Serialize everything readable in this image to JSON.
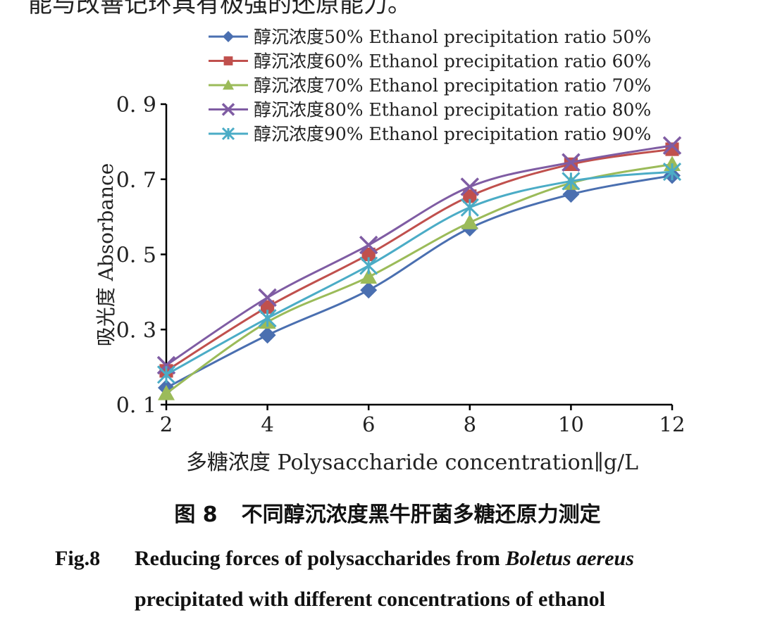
{
  "header_fragment": "能与改善记环具有极强的还原能力。",
  "chart_data": {
    "type": "line",
    "x": [
      2,
      4,
      6,
      8,
      10,
      12
    ],
    "xlabel": "多糖浓度 Polysaccharide concentration∥g/L",
    "ylabel": "吸光度 Absorbance",
    "xlim": [
      2,
      12
    ],
    "ylim": [
      0.1,
      0.9
    ],
    "yticks": [
      "0. 1",
      "0. 3",
      "0. 5",
      "0. 7",
      "0. 9"
    ],
    "xticks": [
      "2",
      "4",
      "6",
      "8",
      "10",
      "12"
    ],
    "legend_position": "top",
    "grid": false,
    "series": [
      {
        "name": "醇沉浓度50% Ethanol precipitation ratio 50%",
        "marker": "diamond",
        "color": "#4a6fb0",
        "values": [
          0.145,
          0.285,
          0.405,
          0.57,
          0.66,
          0.71
        ]
      },
      {
        "name": "醇沉浓度60% Ethanol precipitation ratio 60%",
        "marker": "square",
        "color": "#c0504d",
        "values": [
          0.19,
          0.36,
          0.5,
          0.655,
          0.74,
          0.78
        ]
      },
      {
        "name": "醇沉浓度70% Ethanol precipitation ratio 70%",
        "marker": "triangle",
        "color": "#9bbb59",
        "values": [
          0.13,
          0.32,
          0.44,
          0.585,
          0.69,
          0.74
        ]
      },
      {
        "name": "醇沉浓度80% Ethanol precipitation ratio 80%",
        "marker": "x",
        "color": "#7f5ca3",
        "values": [
          0.205,
          0.385,
          0.525,
          0.68,
          0.745,
          0.79
        ]
      },
      {
        "name": "醇沉浓度90% Ethanol precipitation ratio 90%",
        "marker": "asterisk",
        "color": "#4bacc6",
        "values": [
          0.18,
          0.33,
          0.47,
          0.625,
          0.695,
          0.72
        ]
      }
    ]
  },
  "caption": {
    "cn_label": "图 8",
    "cn_text": "不同醇沉浓度黑牛肝菌多糖还原力测定",
    "en_label": "Fig.8",
    "en_line1_a": "Reducing forces of polysaccharides from ",
    "en_line1_b": "Boletus aereus",
    "en_line2": "precipitated with different concentrations of ethanol"
  }
}
